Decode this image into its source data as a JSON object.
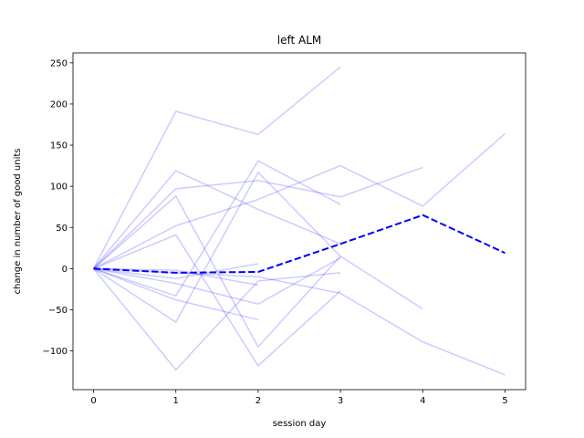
{
  "chart_data": {
    "type": "line",
    "title": "left ALM",
    "xlabel": "session day",
    "ylabel": "change in number of good units",
    "xlim": [
      -0.25,
      5.25
    ],
    "ylim": [
      -147,
      262
    ],
    "xticks": [
      0,
      1,
      2,
      3,
      4,
      5
    ],
    "yticks": [
      -100,
      -50,
      0,
      50,
      100,
      150,
      200,
      250
    ],
    "grid": false,
    "individual_color": "#0000ff",
    "individual_opacity": 0.2,
    "mean_color": "#0000ff",
    "series": [
      {
        "x": [
          0,
          1,
          2,
          3
        ],
        "y": [
          0,
          191,
          163,
          245
        ]
      },
      {
        "x": [
          0,
          1,
          2,
          3
        ],
        "y": [
          0,
          119,
          72,
          30
        ]
      },
      {
        "x": [
          0,
          1,
          2,
          3,
          4
        ],
        "y": [
          0,
          97,
          107,
          87,
          123
        ]
      },
      {
        "x": [
          0,
          1,
          2,
          3,
          4,
          5
        ],
        "y": [
          0,
          52,
          84,
          125,
          76,
          164
        ]
      },
      {
        "x": [
          0,
          1,
          2,
          3
        ],
        "y": [
          0,
          -33,
          131,
          78
        ]
      },
      {
        "x": [
          0,
          1,
          2,
          3,
          4
        ],
        "y": [
          0,
          88,
          -95,
          15,
          -49
        ]
      },
      {
        "x": [
          0,
          1,
          2,
          3
        ],
        "y": [
          0,
          41,
          -118,
          -27
        ]
      },
      {
        "x": [
          0,
          1,
          2
        ],
        "y": [
          0,
          -2,
          -20
        ]
      },
      {
        "x": [
          0,
          1,
          2
        ],
        "y": [
          0,
          -12,
          6
        ]
      },
      {
        "x": [
          0,
          1,
          2
        ],
        "y": [
          0,
          -38,
          -62
        ]
      },
      {
        "x": [
          0,
          1,
          2,
          3
        ],
        "y": [
          0,
          -65,
          117,
          15
        ]
      },
      {
        "x": [
          0,
          1,
          2,
          3
        ],
        "y": [
          0,
          -123,
          -15,
          -5
        ]
      },
      {
        "x": [
          0,
          1,
          2,
          3,
          4,
          5
        ],
        "y": [
          0,
          -5,
          -10,
          -30,
          -89,
          -129
        ]
      },
      {
        "x": [
          0,
          1,
          2,
          3
        ],
        "y": [
          0,
          -18,
          -43,
          13
        ]
      }
    ],
    "mean": {
      "x": [
        0,
        1,
        2,
        3,
        4,
        5
      ],
      "y": [
        0,
        -5,
        -4,
        30,
        65,
        19
      ]
    }
  }
}
